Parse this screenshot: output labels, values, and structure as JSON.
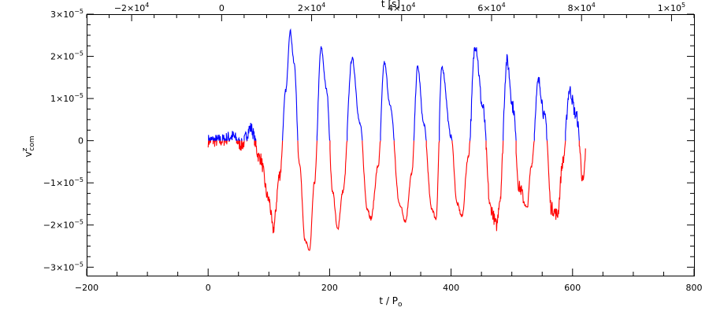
{
  "chart_data": {
    "type": "line",
    "title": "",
    "xlabel": "t / P",
    "xlabel_sub": "o",
    "ylabel": "v",
    "ylabel_sup": "z",
    "ylabel_sub": "com",
    "x2label": "t [s]",
    "xlim": [
      -200,
      800
    ],
    "ylim": [
      -3.2e-05,
      3e-05
    ],
    "x2lim": [
      -30000.0,
      105000.0
    ],
    "grid": false,
    "legend": "none",
    "x_ticks": [
      {
        "value": -200,
        "label": "−200"
      },
      {
        "value": 0,
        "label": "0"
      },
      {
        "value": 200,
        "label": "200"
      },
      {
        "value": 400,
        "label": "400"
      },
      {
        "value": 600,
        "label": "600"
      },
      {
        "value": 800,
        "label": "800"
      }
    ],
    "x2_ticks": [
      {
        "value": -20000,
        "label": "−2×10",
        "exp": "4"
      },
      {
        "value": 0,
        "label": "0",
        "exp": ""
      },
      {
        "value": 20000,
        "label": "2×10",
        "exp": "4"
      },
      {
        "value": 40000,
        "label": "4×10",
        "exp": "4"
      },
      {
        "value": 60000,
        "label": "6×10",
        "exp": "4"
      },
      {
        "value": 80000,
        "label": "8×10",
        "exp": "4"
      },
      {
        "value": 100000,
        "label": "1×10",
        "exp": "5"
      }
    ],
    "y_ticks": [
      {
        "value": 3e-05,
        "label": "3×10",
        "exp": "−5"
      },
      {
        "value": 2e-05,
        "label": "2×10",
        "exp": "−5"
      },
      {
        "value": 1e-05,
        "label": "1×10",
        "exp": "−5"
      },
      {
        "value": 0,
        "label": "0",
        "exp": ""
      },
      {
        "value": -1e-05,
        "label": "−1×10",
        "exp": "−5"
      },
      {
        "value": -2e-05,
        "label": "−2×10",
        "exp": "−5"
      },
      {
        "value": -3e-05,
        "label": "−3×10",
        "exp": "−5"
      }
    ],
    "positive_color": "#0000ff",
    "negative_color": "#ff0000",
    "series": [
      {
        "x": [
          0,
          20,
          40,
          55,
          70,
          85,
          100,
          107,
          118,
          128,
          135,
          142,
          150,
          160,
          167,
          175,
          186,
          195,
          205,
          213,
          222,
          237,
          250,
          262,
          268,
          280,
          290,
          300,
          315,
          325,
          335,
          345,
          355,
          368,
          375,
          385,
          400,
          410,
          418,
          428,
          440,
          452,
          465,
          475,
          480,
          492,
          502,
          512,
          525,
          532,
          544,
          555,
          565,
          575,
          584,
          595,
          606,
          618,
          622
        ],
        "y": [
          0,
          0,
          1e-06,
          -1e-06,
          3e-06,
          -4e-06,
          -1.4e-05,
          -2.1e-05,
          -8e-06,
          1.2e-05,
          2.6e-05,
          1.8e-05,
          -5e-06,
          -2.4e-05,
          -2.6e-05,
          -1e-05,
          2.2e-05,
          1.2e-05,
          -1.2e-05,
          -2.1e-05,
          -1.2e-05,
          1.95e-05,
          4e-06,
          -1.6e-05,
          -1.85e-05,
          -6e-06,
          1.85e-05,
          8e-06,
          -1.5e-05,
          -1.9e-05,
          -8e-06,
          1.75e-05,
          4e-06,
          -1.6e-05,
          -1.85e-05,
          1.75e-05,
          1e-06,
          -1.5e-05,
          -1.8e-05,
          -4e-06,
          2.3e-05,
          8e-06,
          -1.6e-05,
          -2e-05,
          -1.4e-05,
          1.9e-05,
          8e-06,
          -1.1e-05,
          -1.6e-05,
          -6e-06,
          1.4e-05,
          5e-06,
          -1.6e-05,
          -1.75e-05,
          -5e-06,
          1.2e-05,
          6e-06,
          -1e-05,
          -2e-06
        ]
      }
    ]
  }
}
